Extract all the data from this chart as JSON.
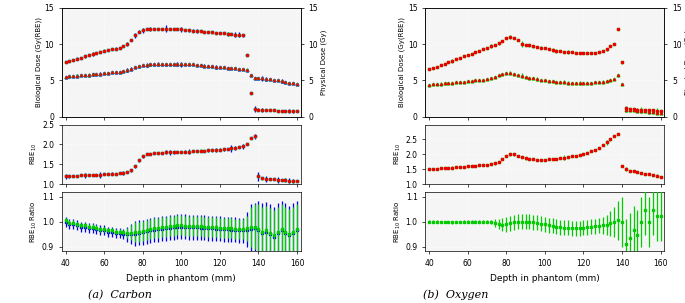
{
  "x": [
    40,
    42,
    44,
    46,
    48,
    50,
    52,
    54,
    56,
    58,
    60,
    62,
    64,
    66,
    68,
    70,
    72,
    74,
    76,
    78,
    80,
    82,
    84,
    86,
    88,
    90,
    92,
    94,
    96,
    98,
    100,
    102,
    104,
    106,
    108,
    110,
    112,
    114,
    116,
    118,
    120,
    122,
    124,
    126,
    128,
    130,
    132,
    134,
    136,
    138,
    140,
    142,
    144,
    146,
    148,
    150,
    152,
    154,
    156,
    158,
    160
  ],
  "carbon_bio_high": [
    7.5,
    7.7,
    7.85,
    8.0,
    8.15,
    8.3,
    8.45,
    8.6,
    8.75,
    8.9,
    9.05,
    9.15,
    9.25,
    9.35,
    9.5,
    9.7,
    10.0,
    10.5,
    11.2,
    11.7,
    11.9,
    12.0,
    12.05,
    12.1,
    12.1,
    12.1,
    12.1,
    12.05,
    12.05,
    12.0,
    12.0,
    11.95,
    11.9,
    11.85,
    11.8,
    11.75,
    11.7,
    11.65,
    11.6,
    11.55,
    11.5,
    11.45,
    11.4,
    11.35,
    11.3,
    11.25,
    11.2,
    8.5,
    3.3,
    1.1,
    1.0,
    1.0,
    0.95,
    0.95,
    0.9,
    0.85,
    0.85,
    0.8,
    0.8,
    0.75,
    0.75
  ],
  "carbon_bio_low": [
    5.5,
    5.55,
    5.6,
    5.65,
    5.7,
    5.75,
    5.8,
    5.85,
    5.9,
    5.95,
    6.0,
    6.05,
    6.1,
    6.15,
    6.2,
    6.3,
    6.45,
    6.6,
    6.8,
    7.0,
    7.1,
    7.15,
    7.2,
    7.2,
    7.2,
    7.2,
    7.2,
    7.2,
    7.2,
    7.2,
    7.2,
    7.2,
    7.2,
    7.2,
    7.15,
    7.1,
    7.05,
    7.0,
    6.95,
    6.9,
    6.85,
    6.8,
    6.75,
    6.7,
    6.65,
    6.6,
    6.55,
    6.5,
    5.8,
    5.4,
    5.35,
    5.3,
    5.25,
    5.2,
    5.1,
    5.0,
    4.9,
    4.8,
    4.7,
    4.6,
    4.5
  ],
  "carbon_rbe": [
    1.2,
    1.2,
    1.21,
    1.21,
    1.22,
    1.22,
    1.23,
    1.23,
    1.24,
    1.24,
    1.25,
    1.25,
    1.26,
    1.26,
    1.27,
    1.28,
    1.3,
    1.35,
    1.45,
    1.6,
    1.7,
    1.75,
    1.77,
    1.78,
    1.79,
    1.79,
    1.8,
    1.8,
    1.8,
    1.81,
    1.81,
    1.82,
    1.82,
    1.83,
    1.83,
    1.84,
    1.84,
    1.85,
    1.85,
    1.86,
    1.87,
    1.88,
    1.89,
    1.9,
    1.91,
    1.93,
    1.95,
    2.0,
    2.15,
    2.2,
    1.2,
    1.15,
    1.14,
    1.13,
    1.12,
    1.11,
    1.1,
    1.1,
    1.09,
    1.08,
    1.08
  ],
  "carbon_ratio_center": [
    1.0,
    0.99,
    0.99,
    0.985,
    0.98,
    0.98,
    0.975,
    0.975,
    0.97,
    0.965,
    0.965,
    0.96,
    0.96,
    0.955,
    0.955,
    0.952,
    0.95,
    0.95,
    0.952,
    0.955,
    0.958,
    0.962,
    0.965,
    0.968,
    0.97,
    0.972,
    0.974,
    0.976,
    0.978,
    0.98,
    0.98,
    0.979,
    0.978,
    0.977,
    0.977,
    0.976,
    0.975,
    0.974,
    0.973,
    0.972,
    0.971,
    0.97,
    0.969,
    0.968,
    0.967,
    0.966,
    0.965,
    0.968,
    0.972,
    0.975,
    0.965,
    0.955,
    0.96,
    0.95,
    0.94,
    0.955,
    0.965,
    0.955,
    0.945,
    0.955,
    0.965
  ],
  "carbon_ratio_blue_err": [
    0.02,
    0.02,
    0.02,
    0.02,
    0.02,
    0.02,
    0.02,
    0.02,
    0.02,
    0.02,
    0.02,
    0.02,
    0.02,
    0.02,
    0.02,
    0.02,
    0.03,
    0.04,
    0.05,
    0.05,
    0.05,
    0.05,
    0.05,
    0.05,
    0.05,
    0.05,
    0.05,
    0.05,
    0.05,
    0.05,
    0.05,
    0.05,
    0.05,
    0.05,
    0.05,
    0.05,
    0.05,
    0.05,
    0.05,
    0.05,
    0.05,
    0.05,
    0.05,
    0.05,
    0.05,
    0.05,
    0.05,
    0.07,
    0.1,
    0.1,
    0.12,
    0.12,
    0.12,
    0.12,
    0.12,
    0.12,
    0.12,
    0.12,
    0.12,
    0.12,
    0.12
  ],
  "carbon_ratio_green_err": [
    0.01,
    0.01,
    0.01,
    0.01,
    0.01,
    0.01,
    0.01,
    0.01,
    0.01,
    0.01,
    0.01,
    0.01,
    0.01,
    0.01,
    0.01,
    0.01,
    0.02,
    0.03,
    0.04,
    0.04,
    0.04,
    0.04,
    0.04,
    0.04,
    0.04,
    0.04,
    0.04,
    0.04,
    0.04,
    0.04,
    0.04,
    0.04,
    0.04,
    0.04,
    0.04,
    0.04,
    0.04,
    0.04,
    0.04,
    0.04,
    0.04,
    0.04,
    0.04,
    0.04,
    0.04,
    0.04,
    0.04,
    0.05,
    0.08,
    0.09,
    0.1,
    0.1,
    0.1,
    0.1,
    0.1,
    0.1,
    0.1,
    0.1,
    0.1,
    0.1,
    0.1
  ],
  "oxygen_bio_high": [
    6.6,
    6.75,
    6.9,
    7.1,
    7.3,
    7.5,
    7.7,
    7.9,
    8.1,
    8.3,
    8.5,
    8.7,
    8.9,
    9.1,
    9.3,
    9.5,
    9.7,
    9.9,
    10.1,
    10.4,
    10.8,
    11.0,
    10.8,
    10.5,
    10.0,
    9.9,
    9.8,
    9.7,
    9.6,
    9.5,
    9.4,
    9.3,
    9.2,
    9.1,
    9.0,
    8.95,
    8.9,
    8.85,
    8.8,
    8.78,
    8.76,
    8.75,
    8.77,
    8.8,
    8.85,
    9.0,
    9.3,
    9.7,
    10.0,
    12.0,
    7.5,
    1.2,
    1.1,
    1.05,
    1.0,
    1.0,
    0.95,
    0.95,
    0.9,
    0.85,
    0.8
  ],
  "oxygen_bio_low": [
    4.4,
    4.45,
    4.5,
    4.55,
    4.6,
    4.65,
    4.7,
    4.75,
    4.8,
    4.85,
    4.9,
    4.95,
    5.0,
    5.05,
    5.1,
    5.2,
    5.3,
    5.5,
    5.7,
    5.9,
    6.0,
    6.05,
    5.95,
    5.8,
    5.65,
    5.5,
    5.4,
    5.3,
    5.2,
    5.1,
    5.0,
    4.95,
    4.9,
    4.85,
    4.8,
    4.75,
    4.72,
    4.7,
    4.68,
    4.67,
    4.66,
    4.67,
    4.7,
    4.74,
    4.78,
    4.85,
    4.9,
    5.0,
    5.2,
    5.8,
    4.5,
    1.0,
    0.95,
    0.9,
    0.85,
    0.8,
    0.75,
    0.7,
    0.65,
    0.6,
    0.55
  ],
  "oxygen_rbe": [
    1.5,
    1.51,
    1.52,
    1.53,
    1.54,
    1.55,
    1.56,
    1.57,
    1.58,
    1.59,
    1.6,
    1.61,
    1.62,
    1.63,
    1.64,
    1.65,
    1.67,
    1.7,
    1.75,
    1.85,
    1.95,
    2.0,
    2.0,
    1.95,
    1.9,
    1.87,
    1.85,
    1.83,
    1.82,
    1.82,
    1.82,
    1.83,
    1.84,
    1.85,
    1.87,
    1.89,
    1.91,
    1.93,
    1.96,
    1.98,
    2.02,
    2.06,
    2.1,
    2.15,
    2.2,
    2.3,
    2.4,
    2.5,
    2.6,
    2.7,
    1.6,
    1.5,
    1.45,
    1.43,
    1.4,
    1.38,
    1.35,
    1.33,
    1.3,
    1.28,
    1.25
  ],
  "oxygen_ratio_center": [
    1.0,
    1.0,
    1.0,
    0.999,
    0.998,
    0.998,
    0.997,
    0.998,
    0.999,
    1.0,
    1.0,
    1.0,
    1.0,
    1.0,
    1.0,
    1.0,
    1.0,
    0.995,
    0.99,
    0.988,
    0.99,
    0.993,
    0.997,
    0.999,
    1.0,
    1.0,
    1.0,
    0.998,
    0.995,
    0.992,
    0.989,
    0.986,
    0.983,
    0.98,
    0.978,
    0.976,
    0.975,
    0.974,
    0.974,
    0.974,
    0.975,
    0.977,
    0.979,
    0.981,
    0.983,
    0.985,
    0.988,
    0.993,
    0.998,
    1.005,
    0.998,
    0.91,
    0.935,
    0.965,
    0.948,
    0.998,
    1.048,
    0.998,
    1.048,
    1.023,
    1.023
  ],
  "oxygen_ratio_green_err": [
    0.005,
    0.005,
    0.005,
    0.005,
    0.005,
    0.005,
    0.005,
    0.005,
    0.005,
    0.005,
    0.005,
    0.005,
    0.005,
    0.005,
    0.005,
    0.005,
    0.008,
    0.015,
    0.02,
    0.025,
    0.03,
    0.03,
    0.03,
    0.03,
    0.03,
    0.03,
    0.03,
    0.03,
    0.03,
    0.03,
    0.03,
    0.03,
    0.03,
    0.03,
    0.03,
    0.03,
    0.03,
    0.03,
    0.03,
    0.03,
    0.03,
    0.03,
    0.03,
    0.03,
    0.03,
    0.035,
    0.04,
    0.05,
    0.06,
    0.08,
    0.1,
    0.1,
    0.1,
    0.1,
    0.1,
    0.1,
    0.1,
    0.1,
    0.1,
    0.1,
    0.1
  ],
  "colors": {
    "blue": "#0000EE",
    "green": "#00CC00",
    "red": "#EE0000"
  },
  "xlim": [
    38,
    162
  ],
  "x_ticks": [
    40,
    60,
    80,
    100,
    120,
    140,
    160
  ],
  "carbon_dose_ylim": [
    0,
    15
  ],
  "carbon_rbe_ylim": [
    1.0,
    2.5
  ],
  "carbon_ratio_ylim": [
    0.88,
    1.12
  ],
  "carbon_rbe_yticks": [
    1.0,
    1.5,
    2.0,
    2.5
  ],
  "carbon_ratio_yticks": [
    0.9,
    1.0,
    1.1
  ],
  "oxygen_dose_ylim": [
    0,
    15
  ],
  "oxygen_rbe_ylim": [
    1.0,
    3.0
  ],
  "oxygen_ratio_ylim": [
    0.88,
    1.12
  ],
  "oxygen_rbe_yticks": [
    1.0,
    1.5,
    2.0,
    2.5
  ],
  "oxygen_ratio_yticks": [
    0.9,
    1.0,
    1.1
  ],
  "dose_yticks": [
    0,
    5,
    10,
    15
  ],
  "ylabel_bio_dose": "Biological Dose (Gy(RBE))",
  "ylabel_phys_dose": "Physical Dose (Gy)",
  "ylabel_rbe": "RBE$_{10}$",
  "ylabel_ratio": "RBE$_{10}$ Ratio",
  "xlabel": "Depth in phantom (mm)",
  "title_carbon": "(a)  Carbon",
  "title_oxygen": "(b)  Oxygen",
  "bg_color": "#f5f5f5"
}
